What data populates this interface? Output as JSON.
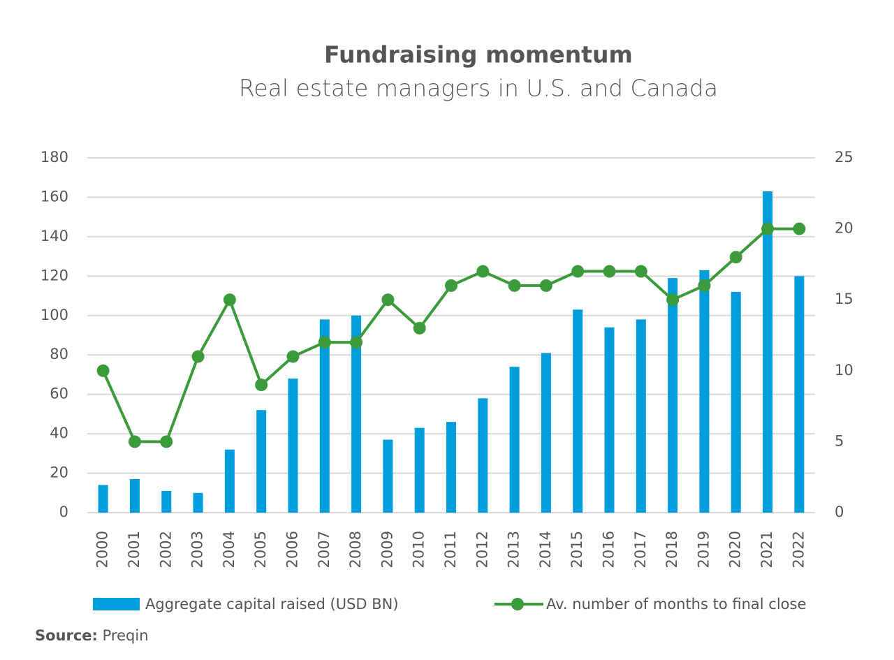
{
  "chart_data": {
    "type": "bar-line",
    "title": "Fundraising momentum",
    "subtitle": "Real estate managers in U.S. and Canada",
    "categories": [
      "2000",
      "2001",
      "2002",
      "2003",
      "2004",
      "2005",
      "2006",
      "2007",
      "2008",
      "2009",
      "2010",
      "2011",
      "2012",
      "2013",
      "2014",
      "2015",
      "2016",
      "2017",
      "2018",
      "2019",
      "2020",
      "2021",
      "2022"
    ],
    "series": [
      {
        "name": "Aggregate capital raised (USD BN)",
        "color": "#009ddc",
        "type": "bar",
        "values": [
          14,
          17,
          11,
          10,
          32,
          52,
          68,
          98,
          100,
          37,
          43,
          46,
          58,
          74,
          81,
          103,
          94,
          98,
          119,
          123,
          112,
          163,
          120
        ]
      },
      {
        "name": "Av. number of months to final close",
        "color": "#3b9b3b",
        "type": "line",
        "axis": "y2",
        "values": [
          10,
          5,
          5,
          11,
          15,
          9,
          11,
          12,
          12,
          15,
          13,
          16,
          17,
          16,
          16,
          17,
          17,
          17,
          15,
          16,
          18,
          20,
          20
        ]
      }
    ],
    "ylim": [
      0,
      180
    ],
    "yticks": [
      0,
      20,
      40,
      60,
      80,
      100,
      120,
      140,
      160,
      180
    ],
    "y2lim": [
      0,
      25
    ],
    "y2ticks": [
      0,
      5,
      10,
      15,
      20,
      25
    ],
    "grid": true,
    "source_label": "Source:",
    "source": "Preqin"
  }
}
